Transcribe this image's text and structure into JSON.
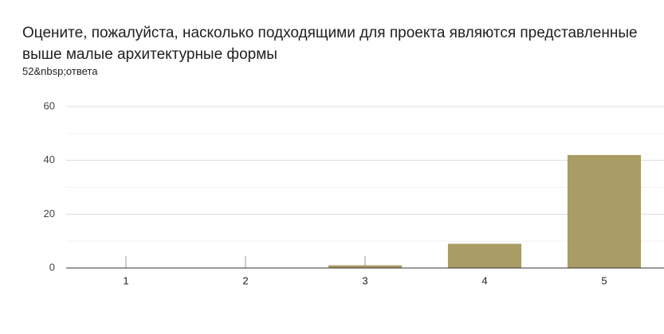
{
  "chart_data": {
    "type": "bar",
    "title": "Оцените, пожалуйста, насколько подходящими для проекта являются представленные выше малые архитектурные формы",
    "subtitle": "52&nbsp;ответа",
    "categories": [
      "1",
      "2",
      "3",
      "4",
      "5"
    ],
    "values": [
      0,
      0,
      1,
      9,
      42
    ],
    "color": "#a99c64",
    "ylim": [
      0,
      60
    ],
    "yticks": [
      0,
      20,
      40,
      60
    ],
    "minor_yticks": [
      10,
      30,
      50
    ],
    "grid": true
  }
}
